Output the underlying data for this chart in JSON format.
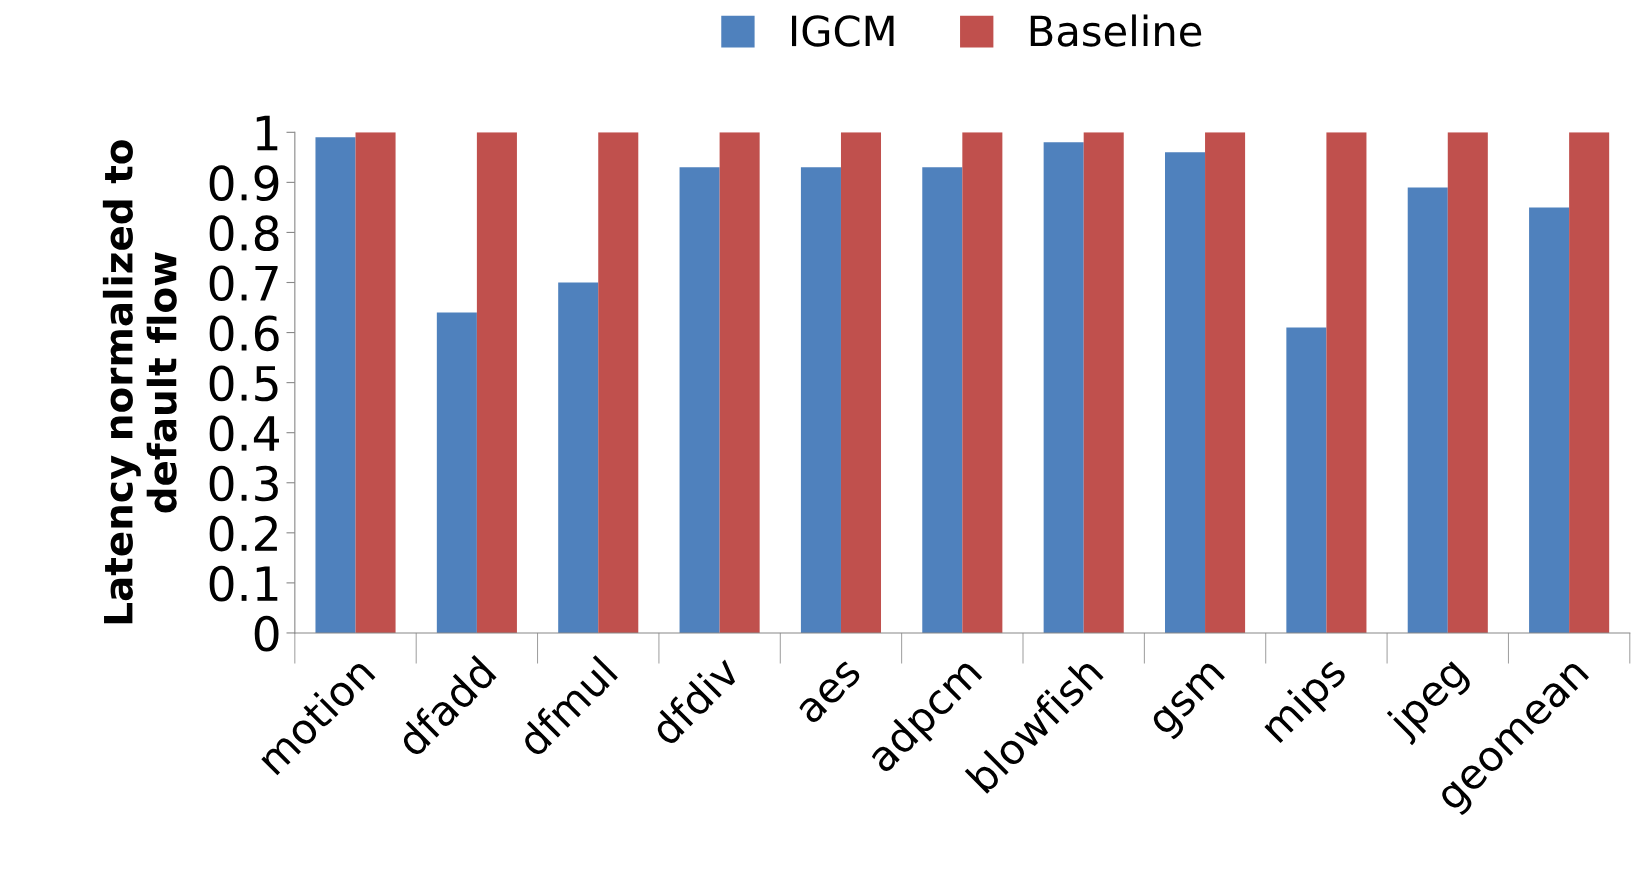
{
  "chart_data": {
    "type": "bar",
    "ylabel": "Latency normalized to\ndefault flow",
    "categories": [
      "motion",
      "dfadd",
      "dfmul",
      "dfdiv",
      "aes",
      "adpcm",
      "blowfish",
      "gsm",
      "mips",
      "jpeg",
      "geomean"
    ],
    "series": [
      {
        "name": "IGCM",
        "color": "#4f81bd",
        "values": [
          0.99,
          0.64,
          0.7,
          0.93,
          0.93,
          0.93,
          0.98,
          0.96,
          0.61,
          0.89,
          0.85
        ]
      },
      {
        "name": "Baseline",
        "color": "#c0504d",
        "values": [
          1,
          1,
          1,
          1,
          1,
          1,
          1,
          1,
          1,
          1,
          1
        ]
      }
    ],
    "ylim": [
      0,
      1
    ],
    "yticks": [
      0,
      0.1,
      0.2,
      0.3,
      0.4,
      0.5,
      0.6,
      0.7,
      0.8,
      0.9,
      1
    ],
    "grid": false,
    "legend": "top"
  }
}
